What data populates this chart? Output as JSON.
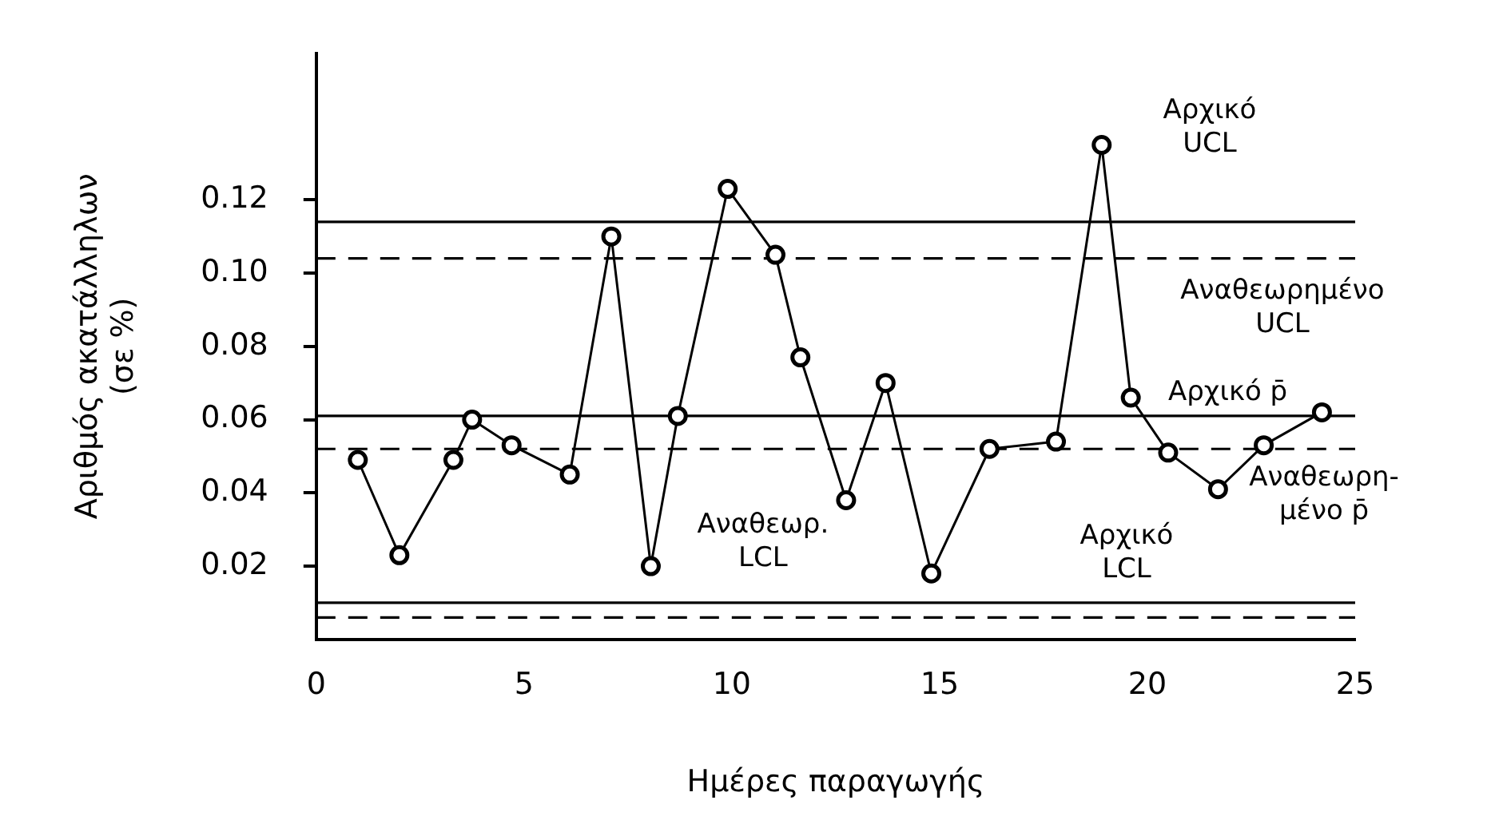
{
  "chart_data": {
    "type": "line",
    "xlabel": "Ημέρες παραγωγής",
    "ylabel": "Αριθμός ακατάλληλων\n(σε %)",
    "series": [
      {
        "color": "#000000",
        "x": [
          1,
          2,
          3.3,
          3.75,
          4.7,
          6.1,
          7.1,
          8.05,
          8.7,
          9.9,
          11.05,
          11.65,
          12.75,
          13.7,
          14.8,
          16.2,
          17.8,
          18.9,
          19.6,
          20.5,
          21.7,
          22.8,
          24.2
        ],
        "values": [
          0.049,
          0.023,
          0.049,
          0.06,
          0.053,
          0.045,
          0.11,
          0.02,
          0.061,
          0.123,
          0.105,
          0.077,
          0.038,
          0.07,
          0.018,
          0.052,
          0.054,
          0.135,
          0.066,
          0.051,
          0.041,
          0.053,
          0.062
        ]
      }
    ],
    "xlim": [
      0,
      25
    ],
    "xticks": [
      0,
      5,
      10,
      15,
      20,
      25
    ],
    "ylim": [
      0,
      0.16
    ],
    "yticks": [
      0.02,
      0.04,
      0.06,
      0.08,
      {
        "value": 0.1,
        "label": "0.10"
      },
      0.12
    ],
    "grid": false,
    "legend": false,
    "marker": "circle",
    "line_style": "solid",
    "ref_lines": [
      {
        "axis": "y",
        "value": 0.114,
        "label": "Αρχικό\nUCL",
        "color": "#000000",
        "line_style": "solid"
      },
      {
        "axis": "y",
        "value": 0.104,
        "label": "Αναθεωρημένο\nUCL",
        "color": "#000000",
        "line_style": "dashed"
      },
      {
        "axis": "y",
        "value": 0.061,
        "label": "Αρχικό p̄",
        "color": "#000000",
        "line_style": "solid"
      },
      {
        "axis": "y",
        "value": 0.052,
        "label": "Αναθεωρη-\nμένο p̄",
        "color": "#000000",
        "line_style": "dashed"
      },
      {
        "axis": "y",
        "value": 0.01,
        "label": "Αρχικό\nLCL",
        "color": "#000000",
        "line_style": "solid"
      },
      {
        "axis": "y",
        "value": 0.006,
        "label": "Αναθεωρ.\nLCL",
        "color": "#000000",
        "line_style": "dashed"
      }
    ]
  }
}
